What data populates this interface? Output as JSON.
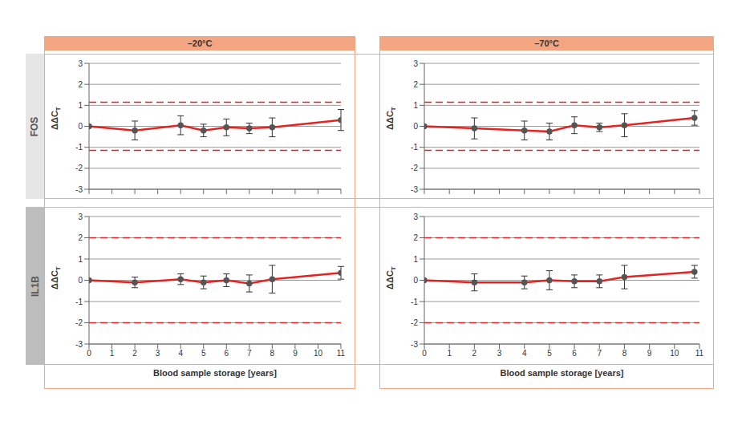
{
  "column_headers": [
    "–20°C",
    "–70°C"
  ],
  "row_labels": [
    "FOS",
    "IL1B"
  ],
  "chart_data": [
    {
      "type": "line",
      "x": [
        0,
        2,
        4,
        5,
        6,
        7,
        8,
        11
      ],
      "values": [
        0,
        -0.2,
        0.05,
        -0.2,
        -0.05,
        -0.1,
        -0.05,
        0.3
      ],
      "errors": [
        0,
        0.45,
        0.45,
        0.3,
        0.4,
        0.25,
        0.45,
        0.5
      ],
      "color": "#e3231f",
      "marker": "circle",
      "reference_lines": [
        1.15,
        -1.15
      ],
      "xlim": [
        0,
        11
      ],
      "xticks": [
        0,
        1,
        2,
        3,
        4,
        5,
        6,
        7,
        8,
        9,
        10,
        11
      ],
      "ylim": [
        -3,
        3
      ],
      "yticks": [
        -3,
        -2,
        -1,
        0,
        1,
        2,
        3
      ],
      "grid": true,
      "y_label": "ΔΔCT",
      "tick_labels": "y"
    },
    {
      "type": "line",
      "x": [
        0,
        2,
        4,
        5,
        6,
        7,
        8,
        10.8
      ],
      "values": [
        0,
        -0.1,
        -0.2,
        -0.25,
        0.05,
        -0.05,
        0.05,
        0.4
      ],
      "errors": [
        0,
        0.5,
        0.45,
        0.4,
        0.4,
        0.2,
        0.55,
        0.35
      ],
      "color": "#e3231f",
      "marker": "circle",
      "reference_lines": [
        1.15,
        -1.15
      ],
      "xlim": [
        0,
        11
      ],
      "xticks": [
        0,
        1,
        2,
        3,
        4,
        5,
        6,
        7,
        8,
        9,
        10,
        11
      ],
      "ylim": [
        -3,
        3
      ],
      "yticks": [
        -3,
        -2,
        -1,
        0,
        1,
        2,
        3
      ],
      "grid": true,
      "y_label": "ΔΔCT",
      "tick_labels": "y"
    },
    {
      "type": "line",
      "x": [
        0,
        2,
        4,
        5,
        6,
        7,
        8,
        11
      ],
      "values": [
        0,
        -0.1,
        0.05,
        -0.1,
        0,
        -0.15,
        0.05,
        0.35
      ],
      "errors": [
        0,
        0.25,
        0.25,
        0.3,
        0.3,
        0.4,
        0.65,
        0.3
      ],
      "color": "#e3231f",
      "marker": "circle",
      "reference_lines": [
        2,
        -2
      ],
      "xlim": [
        0,
        11
      ],
      "xticks": [
        0,
        1,
        2,
        3,
        4,
        5,
        6,
        7,
        8,
        9,
        10,
        11
      ],
      "ylim": [
        -3,
        3
      ],
      "yticks": [
        -3,
        -2,
        -1,
        0,
        1,
        2,
        3
      ],
      "grid": true,
      "y_label": "ΔΔCT",
      "x_label": "Blood sample storage [years]"
    },
    {
      "type": "line",
      "x": [
        0,
        2,
        4,
        5,
        6,
        7,
        8,
        10.8
      ],
      "values": [
        0,
        -0.1,
        -0.1,
        0,
        -0.05,
        -0.05,
        0.15,
        0.4
      ],
      "errors": [
        0,
        0.4,
        0.3,
        0.45,
        0.3,
        0.3,
        0.55,
        0.3
      ],
      "color": "#e3231f",
      "marker": "circle",
      "reference_lines": [
        2,
        -2
      ],
      "xlim": [
        0,
        11
      ],
      "xticks": [
        0,
        1,
        2,
        3,
        4,
        5,
        6,
        7,
        8,
        9,
        10,
        11
      ],
      "ylim": [
        -3,
        3
      ],
      "yticks": [
        -3,
        -2,
        -1,
        0,
        1,
        2,
        3
      ],
      "grid": true,
      "y_label": "ΔΔCT",
      "x_label": "Blood sample storage [years]"
    }
  ]
}
